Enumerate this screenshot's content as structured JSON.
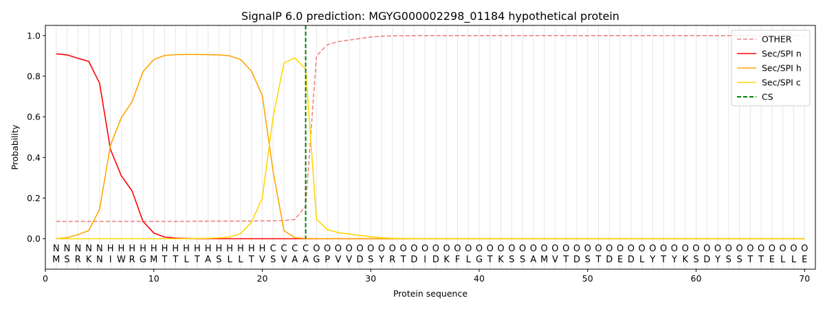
{
  "chart_data": {
    "type": "line",
    "title": "SignalP 6.0 prediction: MGYG000002298_01184 hypothetical protein",
    "xlabel": "Protein sequence",
    "ylabel": "Probability",
    "xlim": [
      0,
      71
    ],
    "ylim": [
      -0.15,
      1.05
    ],
    "x_ticks": [
      0,
      10,
      20,
      30,
      40,
      50,
      60,
      70
    ],
    "y_ticks": [
      0.0,
      0.2,
      0.4,
      0.6,
      0.8,
      1.0
    ],
    "x_tick_labels": [
      "0",
      "10",
      "20",
      "30",
      "40",
      "50",
      "60",
      "70"
    ],
    "y_tick_labels": [
      "0.0",
      "0.2",
      "0.4",
      "0.6",
      "0.8",
      "1.0"
    ],
    "grid": "vertical lines at each residue",
    "legend_position": "top-right",
    "sequence": [
      "M",
      "S",
      "R",
      "K",
      "N",
      "I",
      "W",
      "R",
      "G",
      "M",
      "T",
      "T",
      "L",
      "T",
      "A",
      "S",
      "L",
      "L",
      "T",
      "V",
      "S",
      "V",
      "A",
      "A",
      "G",
      "P",
      "V",
      "V",
      "D",
      "S",
      "Y",
      "R",
      "T",
      "D",
      "I",
      "D",
      "K",
      "F",
      "L",
      "G",
      "T",
      "K",
      "S",
      "S",
      "A",
      "M",
      "V",
      "T",
      "D",
      "S",
      "T",
      "D",
      "E",
      "D",
      "L",
      "Y",
      "T",
      "Y",
      "K",
      "S",
      "D",
      "Y",
      "S",
      "S",
      "T",
      "T",
      "E",
      "L",
      "L",
      "E"
    ],
    "region_labels": [
      "N",
      "N",
      "N",
      "N",
      "N",
      "H",
      "H",
      "H",
      "H",
      "H",
      "H",
      "H",
      "H",
      "H",
      "H",
      "H",
      "H",
      "H",
      "H",
      "H",
      "C",
      "C",
      "C",
      "C",
      "O",
      "O",
      "O",
      "O",
      "O",
      "O",
      "O",
      "O",
      "O",
      "O",
      "O",
      "O",
      "O",
      "O",
      "O",
      "O",
      "O",
      "O",
      "O",
      "O",
      "O",
      "O",
      "O",
      "O",
      "O",
      "O",
      "O",
      "O",
      "O",
      "O",
      "O",
      "O",
      "O",
      "O",
      "O",
      "O",
      "O",
      "O",
      "O",
      "O",
      "O",
      "O",
      "O",
      "O",
      "O",
      "O"
    ],
    "region_colors": {
      "N": "#ff0000",
      "H": "#ffa500",
      "C": "#ffd700",
      "O": "#808080"
    },
    "cs_position": 24,
    "series": [
      {
        "name": "OTHER",
        "color": "#f08080",
        "dash": true,
        "values": [
          0.085,
          0.085,
          0.085,
          0.085,
          0.085,
          0.085,
          0.085,
          0.085,
          0.085,
          0.085,
          0.085,
          0.085,
          0.085,
          0.086,
          0.086,
          0.086,
          0.087,
          0.087,
          0.087,
          0.088,
          0.088,
          0.089,
          0.095,
          0.16,
          0.9,
          0.955,
          0.97,
          0.978,
          0.985,
          0.993,
          0.997,
          0.999,
          0.999,
          1.0,
          1.0,
          1.0,
          1.0,
          1.0,
          1.0,
          1.0,
          1.0,
          1.0,
          1.0,
          1.0,
          1.0,
          1.0,
          1.0,
          1.0,
          1.0,
          1.0,
          1.0,
          1.0,
          1.0,
          1.0,
          1.0,
          1.0,
          1.0,
          1.0,
          1.0,
          1.0,
          1.0,
          1.0,
          1.0,
          1.0,
          1.0,
          1.0,
          1.0,
          1.0,
          1.0,
          1.0
        ]
      },
      {
        "name": "Sec/SPI n",
        "color": "#ff0000",
        "dash": false,
        "values": [
          0.91,
          0.905,
          0.888,
          0.873,
          0.765,
          0.44,
          0.31,
          0.235,
          0.085,
          0.028,
          0.008,
          0.003,
          0.001,
          0.0,
          0.0,
          0.0,
          0.0,
          0.0,
          0.0,
          0.0,
          0.0,
          0.0,
          0.0,
          0.0,
          0.0,
          0.0,
          0.0,
          0.0,
          0.0,
          0.0,
          0.0,
          0.0,
          0.0,
          0.0,
          0.0,
          0.0,
          0.0,
          0.0,
          0.0,
          0.0,
          0.0,
          0.0,
          0.0,
          0.0,
          0.0,
          0.0,
          0.0,
          0.0,
          0.0,
          0.0,
          0.0,
          0.0,
          0.0,
          0.0,
          0.0,
          0.0,
          0.0,
          0.0,
          0.0,
          0.0,
          0.0,
          0.0,
          0.0,
          0.0,
          0.0,
          0.0,
          0.0,
          0.0,
          0.0,
          0.0
        ]
      },
      {
        "name": "Sec/SPI h",
        "color": "#ffa500",
        "dash": false,
        "values": [
          0.0,
          0.005,
          0.02,
          0.04,
          0.145,
          0.46,
          0.595,
          0.675,
          0.822,
          0.882,
          0.902,
          0.906,
          0.907,
          0.907,
          0.906,
          0.905,
          0.9,
          0.882,
          0.825,
          0.705,
          0.33,
          0.04,
          0.005,
          0.001,
          0.0,
          0.0,
          0.0,
          0.0,
          0.0,
          0.0,
          0.0,
          0.0,
          0.0,
          0.0,
          0.0,
          0.0,
          0.0,
          0.0,
          0.0,
          0.0,
          0.0,
          0.0,
          0.0,
          0.0,
          0.0,
          0.0,
          0.0,
          0.0,
          0.0,
          0.0,
          0.0,
          0.0,
          0.0,
          0.0,
          0.0,
          0.0,
          0.0,
          0.0,
          0.0,
          0.0,
          0.0,
          0.0,
          0.0,
          0.0,
          0.0,
          0.0,
          0.0,
          0.0,
          0.0,
          0.0
        ]
      },
      {
        "name": "Sec/SPI c",
        "color": "#ffd700",
        "dash": false,
        "values": [
          0.0,
          0.0,
          0.0,
          0.0,
          0.0,
          0.0,
          0.0,
          0.0,
          0.0,
          0.0,
          0.0,
          0.0,
          0.0,
          0.001,
          0.002,
          0.004,
          0.008,
          0.025,
          0.08,
          0.2,
          0.6,
          0.865,
          0.89,
          0.835,
          0.095,
          0.045,
          0.03,
          0.023,
          0.016,
          0.01,
          0.005,
          0.002,
          0.001,
          0.0,
          0.0,
          0.0,
          0.0,
          0.0,
          0.0,
          0.0,
          0.0,
          0.0,
          0.0,
          0.0,
          0.0,
          0.0,
          0.0,
          0.0,
          0.0,
          0.0,
          0.0,
          0.0,
          0.0,
          0.0,
          0.0,
          0.0,
          0.0,
          0.0,
          0.0,
          0.0,
          0.0,
          0.0,
          0.0,
          0.0,
          0.0,
          0.0,
          0.0,
          0.0,
          0.0,
          0.0
        ]
      },
      {
        "name": "CS",
        "color": "#008000",
        "dash": true,
        "vertical_line": true
      }
    ]
  }
}
